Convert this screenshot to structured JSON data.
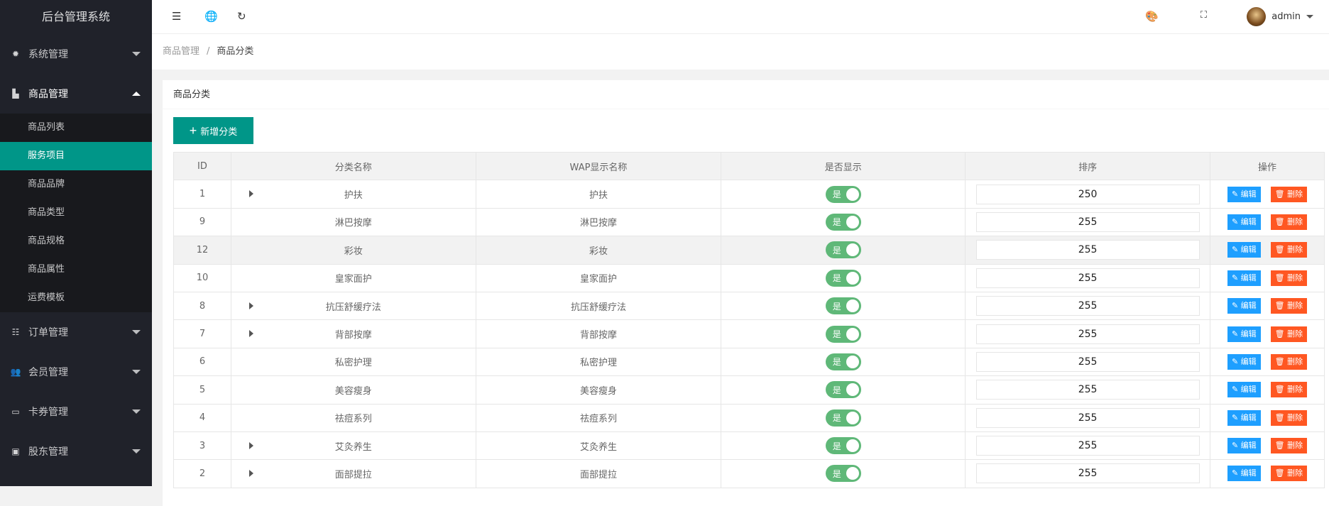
{
  "sidebar": {
    "title": "后台管理系统",
    "menus": [
      {
        "label": "系统管理",
        "icon": "gear-icon"
      },
      {
        "label": "商品管理",
        "icon": "bar-chart-icon"
      },
      {
        "label": "订单管理",
        "icon": "list-icon"
      },
      {
        "label": "会员管理",
        "icon": "users-icon"
      },
      {
        "label": "卡券管理",
        "icon": "card-icon"
      },
      {
        "label": "股东管理",
        "icon": "contact-icon"
      }
    ],
    "submenu": [
      "商品列表",
      "服务项目",
      "商品品牌",
      "商品类型",
      "商品规格",
      "商品属性",
      "运费模板"
    ],
    "active": "服务项目"
  },
  "topbar": {
    "user": "admin"
  },
  "breadcrumb": [
    "商品管理",
    "商品分类"
  ],
  "card": {
    "title": "商品分类",
    "add_label": "新增分类"
  },
  "table": {
    "headers": [
      "ID",
      "分类名称",
      "WAP显示名称",
      "是否显示",
      "排序",
      "操作"
    ],
    "rows": [
      {
        "id": "1",
        "name": "护扶",
        "wap": "护扶",
        "show": "是",
        "sort": "250",
        "children": true
      },
      {
        "id": "9",
        "name": "淋巴按摩",
        "wap": "淋巴按摩",
        "show": "是",
        "sort": "255",
        "children": false
      },
      {
        "id": "12",
        "name": "彩妆",
        "wap": "彩妆",
        "show": "是",
        "sort": "255",
        "children": false
      },
      {
        "id": "10",
        "name": "皇家面护",
        "wap": "皇家面护",
        "show": "是",
        "sort": "255",
        "children": false
      },
      {
        "id": "8",
        "name": "抗压舒缓疗法",
        "wap": "抗压舒缓疗法",
        "show": "是",
        "sort": "255",
        "children": true
      },
      {
        "id": "7",
        "name": "背部按摩",
        "wap": "背部按摩",
        "show": "是",
        "sort": "255",
        "children": true
      },
      {
        "id": "6",
        "name": "私密护理",
        "wap": "私密护理",
        "show": "是",
        "sort": "255",
        "children": false
      },
      {
        "id": "5",
        "name": "美容瘦身",
        "wap": "美容瘦身",
        "show": "是",
        "sort": "255",
        "children": false
      },
      {
        "id": "4",
        "name": "祛痘系列",
        "wap": "祛痘系列",
        "show": "是",
        "sort": "255",
        "children": false
      },
      {
        "id": "3",
        "name": "艾灸养生",
        "wap": "艾灸养生",
        "show": "是",
        "sort": "255",
        "children": true
      },
      {
        "id": "2",
        "name": "面部提拉",
        "wap": "面部提拉",
        "show": "是",
        "sort": "255",
        "children": true
      }
    ],
    "edit_label": "编辑",
    "delete_label": "删除"
  },
  "colors": {
    "primary": "#009688",
    "edit": "#1e9fff",
    "delete": "#ff5722",
    "switch": "#5fb878",
    "sidebar": "#20222a"
  }
}
